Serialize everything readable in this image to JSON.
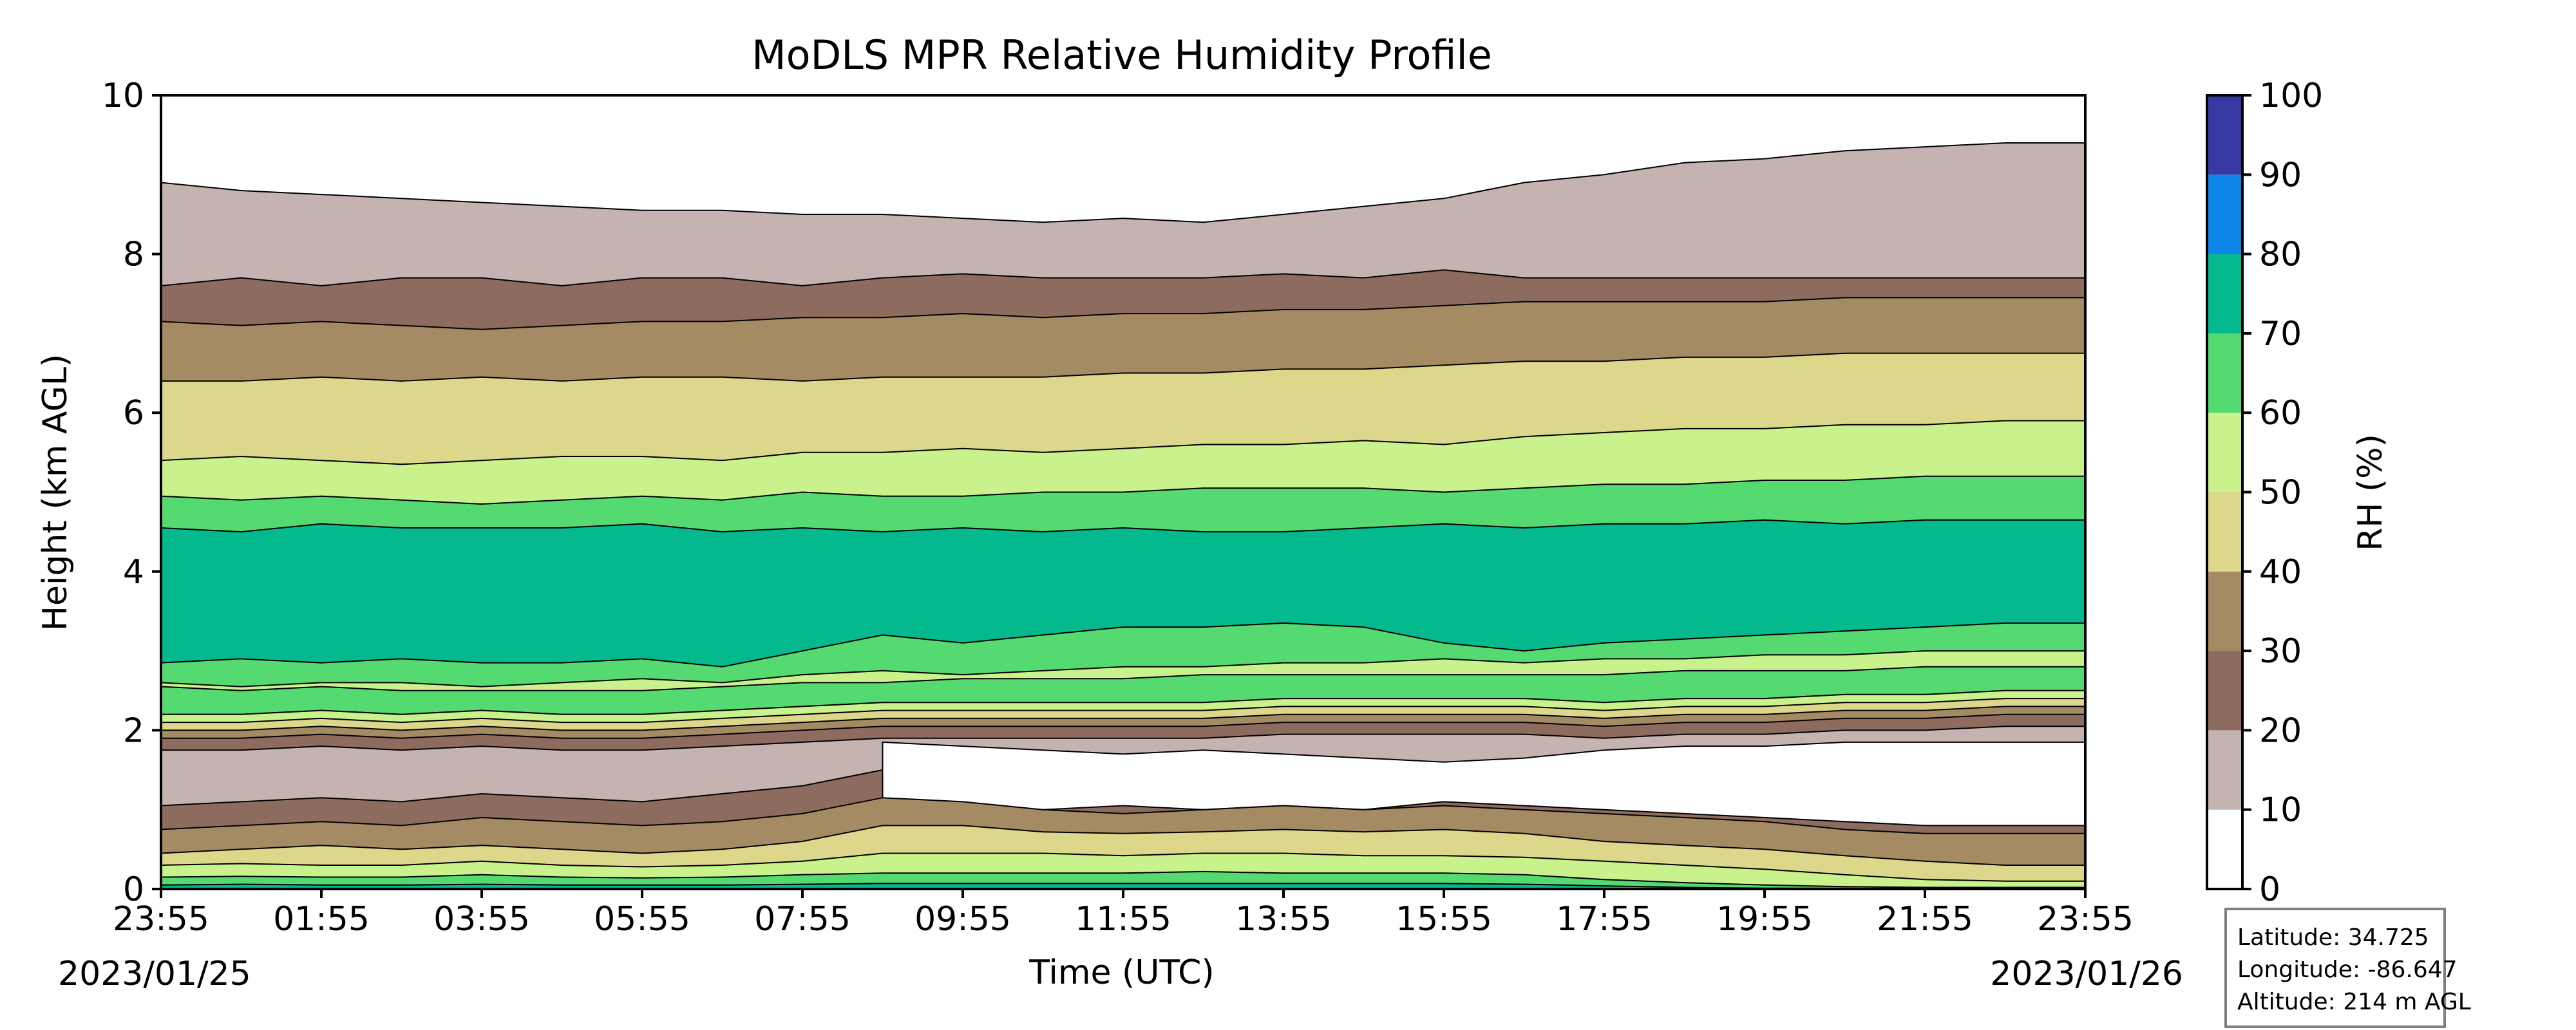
{
  "chart_data": {
    "type": "heatmap",
    "subtype": "filled-contour",
    "title": "MoDLS MPR Relative Humidity Profile",
    "xlabel": "Time (UTC)",
    "ylabel": "Height (km AGL)",
    "x_ticks": [
      "23:55",
      "01:55",
      "03:55",
      "05:55",
      "07:55",
      "09:55",
      "11:55",
      "13:55",
      "15:55",
      "17:55",
      "19:55",
      "21:55",
      "23:55"
    ],
    "x_hours": [
      0,
      2,
      4,
      6,
      8,
      10,
      12,
      14,
      16,
      18,
      20,
      22,
      24
    ],
    "xlim_hours": [
      0,
      24
    ],
    "start_date_label": "2023/01/25",
    "end_date_label": "2023/01/26",
    "y_ticks": [
      0,
      2,
      4,
      6,
      8,
      10
    ],
    "ylim": [
      0,
      10
    ],
    "grid": false,
    "colorbar": {
      "label": "RH (%)",
      "ticks": [
        0,
        10,
        20,
        30,
        40,
        50,
        60,
        70,
        80,
        90,
        100
      ],
      "levels": [
        0,
        10,
        20,
        30,
        40,
        50,
        60,
        70,
        80,
        90,
        100
      ],
      "colors": [
        "#ffffff",
        "#c4b3b0",
        "#8e6b5f",
        "#a48b63",
        "#ddd78b",
        "#c9f28c",
        "#55d971",
        "#04b98d",
        "#0e86e8",
        "#3838a5"
      ]
    },
    "layers": [
      {
        "range": "10-20",
        "lower_km": [
          1.05,
          1.1,
          1.15,
          1.1,
          1.2,
          1.15,
          1.1,
          1.2,
          1.3,
          1.5,
          1.45,
          1.3,
          1.25,
          1.3,
          1.35,
          1.3,
          1.35,
          1.35,
          1.35,
          1.35,
          1.35,
          1.25,
          1.3,
          1.3,
          1.3
        ]
      },
      {
        "range": "20-30",
        "lower_km": [
          0.75,
          0.8,
          0.85,
          0.8,
          0.9,
          0.85,
          0.8,
          0.85,
          0.95,
          1.15,
          1.1,
          1.0,
          0.95,
          1.0,
          1.05,
          1.0,
          1.05,
          1.0,
          0.95,
          0.9,
          0.85,
          0.75,
          0.7,
          0.7,
          0.7
        ]
      },
      {
        "range": "30-40",
        "lower_km": [
          0.45,
          0.5,
          0.55,
          0.5,
          0.55,
          0.5,
          0.45,
          0.5,
          0.6,
          0.8,
          0.8,
          0.72,
          0.7,
          0.72,
          0.75,
          0.72,
          0.75,
          0.7,
          0.6,
          0.55,
          0.5,
          0.42,
          0.35,
          0.3,
          0.3
        ]
      },
      {
        "range": "40-50",
        "lower_km": [
          0.3,
          0.32,
          0.3,
          0.3,
          0.35,
          0.3,
          0.28,
          0.3,
          0.35,
          0.45,
          0.45,
          0.45,
          0.42,
          0.45,
          0.45,
          0.42,
          0.42,
          0.4,
          0.35,
          0.3,
          0.25,
          0.18,
          0.12,
          0.1,
          0.1
        ]
      },
      {
        "range": "50-60",
        "lower_km": [
          0.15,
          0.16,
          0.15,
          0.15,
          0.18,
          0.15,
          0.14,
          0.15,
          0.18,
          0.2,
          0.2,
          0.2,
          0.2,
          0.22,
          0.2,
          0.2,
          0.2,
          0.18,
          0.12,
          0.08,
          0.05,
          0.03,
          0.02,
          0.02,
          0.02
        ]
      },
      {
        "range": "60-70",
        "lower_km": [
          0.05,
          0.06,
          0.05,
          0.05,
          0.06,
          0.05,
          0.05,
          0.05,
          0.06,
          0.07,
          0.07,
          0.07,
          0.07,
          0.07,
          0.07,
          0.07,
          0.07,
          0.06,
          0.04,
          0.02,
          0.01,
          0.01,
          0.0,
          0.0,
          0.0
        ]
      }
    ],
    "bands": [
      {
        "range": "60-70",
        "lower_km": [
          2.6,
          2.55,
          2.6,
          2.6,
          2.55,
          2.6,
          2.65,
          2.6,
          2.7,
          2.75,
          2.7,
          2.75,
          2.8,
          2.8,
          2.85,
          2.85,
          2.9,
          2.85,
          2.9,
          2.9,
          2.95,
          2.95,
          3.0,
          3.0,
          3.0
        ],
        "upper_km": [
          4.95,
          4.9,
          4.95,
          4.9,
          4.85,
          4.9,
          4.95,
          4.9,
          5.0,
          4.95,
          4.95,
          5.0,
          5.0,
          5.05,
          5.05,
          5.05,
          5.0,
          5.05,
          5.1,
          5.1,
          5.15,
          5.15,
          5.2,
          5.2,
          5.2
        ]
      },
      {
        "range": "70-80",
        "lower_km": [
          2.85,
          2.9,
          2.85,
          2.9,
          2.85,
          2.85,
          2.9,
          2.8,
          3.0,
          3.2,
          3.1,
          3.2,
          3.3,
          3.3,
          3.35,
          3.3,
          3.1,
          3.0,
          3.1,
          3.15,
          3.2,
          3.25,
          3.3,
          3.35,
          3.35
        ],
        "upper_km": [
          4.55,
          4.5,
          4.6,
          4.55,
          4.55,
          4.55,
          4.6,
          4.5,
          4.55,
          4.5,
          4.55,
          4.5,
          4.55,
          4.5,
          4.5,
          4.55,
          4.6,
          4.55,
          4.6,
          4.6,
          4.65,
          4.6,
          4.65,
          4.65,
          4.65
        ]
      },
      {
        "range": "60-70 lower band",
        "lower_km": [
          2.2,
          2.2,
          2.25,
          2.2,
          2.25,
          2.2,
          2.2,
          2.25,
          2.3,
          2.35,
          2.35,
          2.35,
          2.35,
          2.35,
          2.4,
          2.4,
          2.4,
          2.4,
          2.35,
          2.4,
          2.4,
          2.45,
          2.45,
          2.5,
          2.5
        ],
        "upper_km": [
          2.55,
          2.5,
          2.55,
          2.5,
          2.5,
          2.5,
          2.5,
          2.55,
          2.6,
          2.6,
          2.65,
          2.65,
          2.65,
          2.7,
          2.7,
          2.7,
          2.7,
          2.7,
          2.7,
          2.75,
          2.75,
          2.75,
          2.8,
          2.8,
          2.8
        ]
      },
      {
        "range": "0-10",
        "lower_km": [
          null,
          null,
          null,
          null,
          null,
          null,
          null,
          null,
          null,
          1.0,
          0.95,
          1.0,
          1.05,
          1.0,
          1.05,
          1.0,
          1.1,
          1.05,
          1.0,
          0.95,
          0.9,
          0.85,
          0.8,
          0.8,
          0.8
        ],
        "upper_km": [
          null,
          null,
          null,
          null,
          null,
          null,
          null,
          null,
          null,
          1.85,
          1.8,
          1.75,
          1.7,
          1.75,
          1.7,
          1.65,
          1.6,
          1.65,
          1.75,
          1.8,
          1.8,
          1.85,
          1.85,
          1.85,
          1.85
        ]
      },
      {
        "range": "10-20 upper",
        "lower_km": [
          7.6,
          7.7,
          7.6,
          7.7,
          7.7,
          7.6,
          7.7,
          7.7,
          7.6,
          7.7,
          7.75,
          7.7,
          7.7,
          7.7,
          7.75,
          7.7,
          7.8,
          7.7,
          7.7,
          7.7,
          7.7,
          7.7,
          7.7,
          7.7,
          7.7
        ],
        "upper_km": [
          8.8,
          8.7,
          8.65,
          8.6,
          8.55,
          8.5,
          8.45,
          8.45,
          8.4,
          8.4,
          8.3,
          8.3,
          8.35,
          8.3,
          8.4,
          8.5,
          8.6,
          8.8,
          8.9,
          9.0,
          9.1,
          9.2,
          9.3,
          9.3,
          9.3
        ]
      },
      {
        "range": "0-10 upper",
        "lower_km": [
          8.9,
          8.8,
          8.75,
          8.7,
          8.65,
          8.6,
          8.55,
          8.55,
          8.5,
          8.5,
          8.45,
          8.4,
          8.45,
          8.4,
          8.5,
          8.6,
          8.7,
          8.9,
          9.0,
          9.15,
          9.2,
          9.3,
          9.35,
          9.4,
          9.4
        ],
        "upper_km": [
          10,
          10,
          10,
          10,
          10,
          10,
          10,
          10,
          10,
          10,
          10,
          10,
          10,
          10,
          10,
          10,
          9.6,
          9.7,
          9.7,
          9.75,
          9.7,
          9.75,
          9.7,
          9.7,
          9.7
        ]
      }
    ],
    "boundaries": [
      {
        "range": "40-50 / 30-40",
        "km": [
          6.4,
          6.4,
          6.45,
          6.4,
          6.45,
          6.4,
          6.45,
          6.45,
          6.4,
          6.45,
          6.45,
          6.45,
          6.5,
          6.5,
          6.55,
          6.55,
          6.6,
          6.65,
          6.65,
          6.7,
          6.7,
          6.75,
          6.75,
          6.75,
          6.75
        ]
      },
      {
        "range": "30-40 / 20-30",
        "km": [
          7.15,
          7.1,
          7.15,
          7.1,
          7.05,
          7.1,
          7.15,
          7.15,
          7.2,
          7.2,
          7.25,
          7.2,
          7.25,
          7.25,
          7.3,
          7.3,
          7.35,
          7.4,
          7.4,
          7.4,
          7.4,
          7.45,
          7.45,
          7.45,
          7.45
        ]
      },
      {
        "range": "50-60 / 40-50",
        "km": [
          5.4,
          5.45,
          5.4,
          5.35,
          5.4,
          5.45,
          5.45,
          5.4,
          5.5,
          5.5,
          5.55,
          5.5,
          5.55,
          5.6,
          5.6,
          5.65,
          5.6,
          5.7,
          5.75,
          5.8,
          5.8,
          5.85,
          5.85,
          5.9,
          5.9
        ]
      }
    ],
    "annotations": [
      {
        "label": "Latitude:",
        "value": "34.725"
      },
      {
        "label": "Longitude:",
        "value": "-86.647"
      },
      {
        "label": "Altitude:",
        "value": "214 m AGL"
      }
    ]
  },
  "infobox": {
    "lat_line": "Latitude: 34.725",
    "lon_line": "Longitude: -86.647",
    "alt_line": "Altitude: 214 m AGL"
  }
}
